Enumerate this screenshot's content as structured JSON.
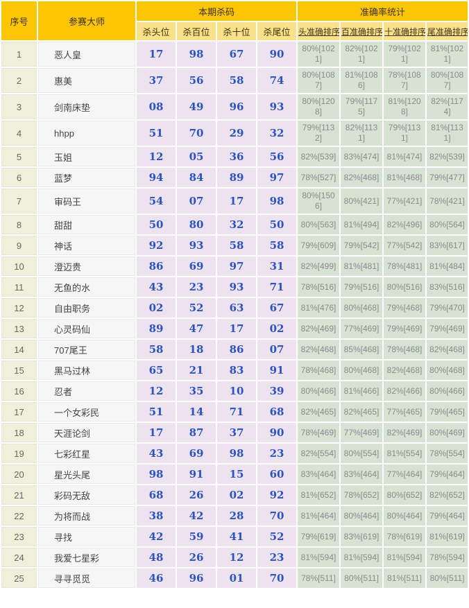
{
  "colors": {
    "header_gold": "#fcc602",
    "header_light_yellow": "#fbe28a",
    "serial_bg": "#f0efda",
    "master_bg": "#f6f6f6",
    "kill_bg": "#ede3ee",
    "accuracy_bg": "#d6e3d2",
    "kill_number_blue": "#2b53c4",
    "accuracy_text_gray": "#8a8a8a"
  },
  "header": {
    "col_serial": "序号",
    "col_master": "参赛大师",
    "group_kill": "本期杀码",
    "group_accuracy": "准确率统计",
    "kill_subs": [
      "杀头位",
      "杀百位",
      "杀十位",
      "杀尾位"
    ],
    "accuracy_subs": [
      "头准确排序",
      "百准确排序",
      "十准确排序",
      "尾准确排序"
    ]
  },
  "rows": [
    {
      "no": "1",
      "master": "恶人皇",
      "kills": [
        "17",
        "98",
        "67",
        "90"
      ],
      "accuracy": [
        "80%[1021]",
        "82%[1021]",
        "79%[1021]",
        "81%[1021]"
      ]
    },
    {
      "no": "2",
      "master": "惠美",
      "kills": [
        "37",
        "56",
        "58",
        "74"
      ],
      "accuracy": [
        "80%[1087]",
        "81%[1086]",
        "78%[1087]",
        "80%[1087]"
      ]
    },
    {
      "no": "3",
      "master": "剑南床垫",
      "kills": [
        "08",
        "49",
        "96",
        "93"
      ],
      "accuracy": [
        "80%[1208]",
        "79%[1175]",
        "81%[1208]",
        "82%[1174]"
      ]
    },
    {
      "no": "4",
      "master": "hhpp",
      "kills": [
        "51",
        "70",
        "29",
        "32"
      ],
      "accuracy": [
        "79%[1132]",
        "82%[1131]",
        "79%[1131]",
        "81%[1131]"
      ]
    },
    {
      "no": "5",
      "master": "玉姐",
      "kills": [
        "12",
        "05",
        "36",
        "56"
      ],
      "accuracy": [
        "82%[539]",
        "83%[474]",
        "81%[474]",
        "82%[539]"
      ]
    },
    {
      "no": "6",
      "master": "蓝梦",
      "kills": [
        "94",
        "84",
        "89",
        "97"
      ],
      "accuracy": [
        "78%[527]",
        "82%[468]",
        "81%[468]",
        "79%[477]"
      ]
    },
    {
      "no": "7",
      "master": "审码王",
      "kills": [
        "54",
        "07",
        "17",
        "98"
      ],
      "accuracy": [
        "80%[1506]",
        "80%[421]",
        "77%[421]",
        "78%[421]"
      ]
    },
    {
      "no": "8",
      "master": "甜甜",
      "kills": [
        "50",
        "80",
        "32",
        "50"
      ],
      "accuracy": [
        "80%[563]",
        "81%[494]",
        "82%[496]",
        "80%[564]"
      ]
    },
    {
      "no": "9",
      "master": "神话",
      "kills": [
        "92",
        "93",
        "58",
        "58"
      ],
      "accuracy": [
        "79%[609]",
        "79%[542]",
        "77%[542]",
        "83%[617]"
      ]
    },
    {
      "no": "10",
      "master": "澄迈贵",
      "kills": [
        "86",
        "69",
        "97",
        "31"
      ],
      "accuracy": [
        "82%[499]",
        "81%[481]",
        "78%[481]",
        "81%[484]"
      ]
    },
    {
      "no": "11",
      "master": "无鱼的水",
      "kills": [
        "43",
        "23",
        "93",
        "71"
      ],
      "accuracy": [
        "78%[516]",
        "79%[516]",
        "80%[516]",
        "83%[516]"
      ]
    },
    {
      "no": "12",
      "master": "自由职务",
      "kills": [
        "02",
        "52",
        "63",
        "67"
      ],
      "accuracy": [
        "81%[476]",
        "80%[468]",
        "79%[468]",
        "79%[470]"
      ]
    },
    {
      "no": "13",
      "master": "心灵码仙",
      "kills": [
        "89",
        "47",
        "17",
        "02"
      ],
      "accuracy": [
        "82%[469]",
        "77%[469]",
        "79%[469]",
        "79%[469]"
      ]
    },
    {
      "no": "14",
      "master": "707尾王",
      "kills": [
        "58",
        "18",
        "86",
        "07"
      ],
      "accuracy": [
        "82%[468]",
        "85%[468]",
        "78%[468]",
        "82%[468]"
      ]
    },
    {
      "no": "15",
      "master": "黑马过林",
      "kills": [
        "65",
        "21",
        "83",
        "91"
      ],
      "accuracy": [
        "78%[468]",
        "80%[468]",
        "82%[468]",
        "80%[468]"
      ]
    },
    {
      "no": "16",
      "master": "忍者",
      "kills": [
        "12",
        "35",
        "10",
        "39"
      ],
      "accuracy": [
        "80%[466]",
        "81%[466]",
        "82%[466]",
        "80%[466]"
      ]
    },
    {
      "no": "17",
      "master": "一个女彩民",
      "kills": [
        "51",
        "14",
        "71",
        "68"
      ],
      "accuracy": [
        "82%[465]",
        "82%[465]",
        "77%[465]",
        "79%[465]"
      ]
    },
    {
      "no": "18",
      "master": "天涯论剑",
      "kills": [
        "17",
        "87",
        "37",
        "90"
      ],
      "accuracy": [
        "78%[469]",
        "77%[469]",
        "82%[469]",
        "80%[469]"
      ]
    },
    {
      "no": "19",
      "master": "七彩红星",
      "kills": [
        "43",
        "69",
        "98",
        "23"
      ],
      "accuracy": [
        "82%[554]",
        "80%[554]",
        "81%[554]",
        "78%[554]"
      ]
    },
    {
      "no": "20",
      "master": "星光头尾",
      "kills": [
        "98",
        "91",
        "15",
        "60"
      ],
      "accuracy": [
        "83%[464]",
        "83%[464]",
        "77%[464]",
        "79%[464]"
      ]
    },
    {
      "no": "21",
      "master": "彩码无敌",
      "kills": [
        "68",
        "26",
        "02",
        "92"
      ],
      "accuracy": [
        "81%[652]",
        "78%[652]",
        "80%[652]",
        "82%[652]"
      ]
    },
    {
      "no": "22",
      "master": "为将而战",
      "kills": [
        "38",
        "42",
        "28",
        "70"
      ],
      "accuracy": [
        "81%[464]",
        "80%[464]",
        "80%[464]",
        "79%[464]"
      ]
    },
    {
      "no": "23",
      "master": "寻找",
      "kills": [
        "42",
        "59",
        "41",
        "52"
      ],
      "accuracy": [
        "79%[619]",
        "83%[619]",
        "78%[619]",
        "81%[619]"
      ]
    },
    {
      "no": "24",
      "master": "我爱七星彩",
      "kills": [
        "48",
        "26",
        "12",
        "23"
      ],
      "accuracy": [
        "81%[594]",
        "81%[594]",
        "81%[594]",
        "78%[594]"
      ]
    },
    {
      "no": "25",
      "master": "寻寻觅觅",
      "kills": [
        "46",
        "96",
        "01",
        "70"
      ],
      "accuracy": [
        "78%[511]",
        "80%[511]",
        "81%[511]",
        "80%[511]"
      ]
    }
  ]
}
